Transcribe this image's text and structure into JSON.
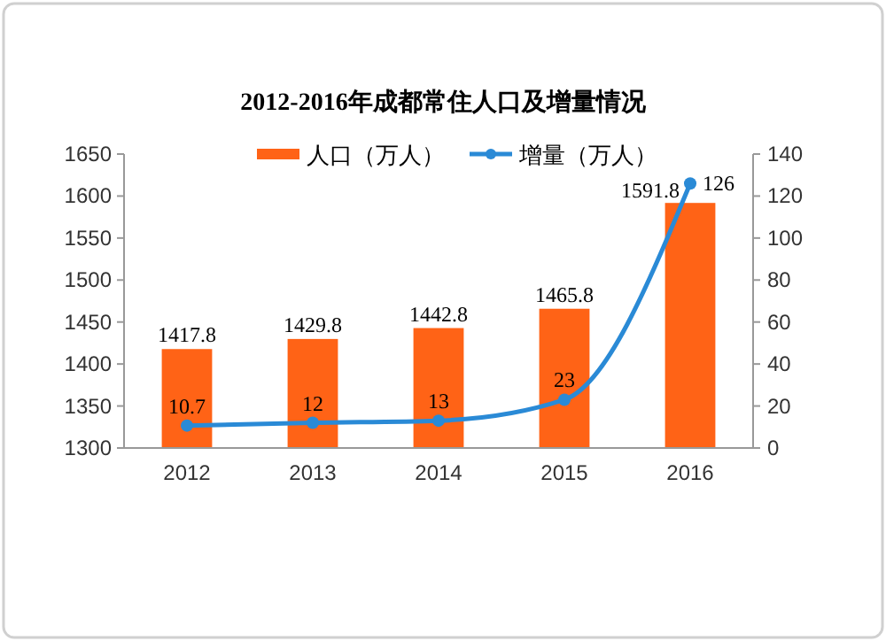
{
  "chart_data": {
    "type": "bar",
    "title": "2012-2016年成都常住人口及增量情况",
    "categories": [
      "2012",
      "2013",
      "2014",
      "2015",
      "2016"
    ],
    "series": [
      {
        "name": "人口（万人）",
        "color": "#ff6316",
        "values": [
          1417.8,
          1429.8,
          1442.8,
          1465.8,
          1591.8
        ]
      },
      {
        "name": "增量（万人）",
        "type": "line",
        "axis": "y2",
        "color": "#2a8ad6",
        "values": [
          10.7,
          12,
          13,
          23,
          126
        ]
      }
    ],
    "ylim": [
      1300,
      1650
    ],
    "yticks": [
      1300,
      1350,
      1400,
      1450,
      1500,
      1550,
      1600,
      1650
    ],
    "y2lim": [
      0,
      140
    ],
    "y2ticks": [
      0,
      20,
      40,
      60,
      80,
      100,
      120,
      140
    ],
    "data_labels": true,
    "legend": "top",
    "marker": "circle",
    "grid": false
  }
}
